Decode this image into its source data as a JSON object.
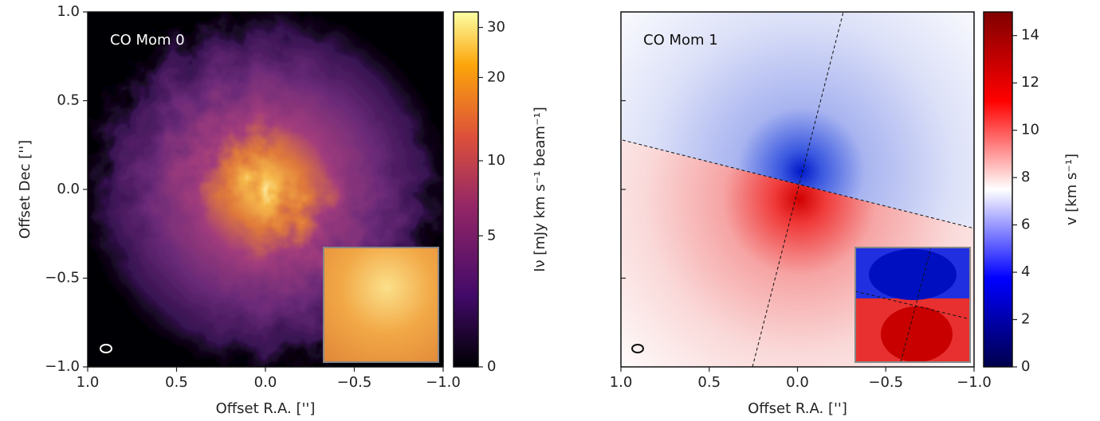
{
  "chart_data": [
    {
      "type": "image",
      "title": "CO Mom 0",
      "xlabel": "Offset R.A. ['']",
      "ylabel": "Offset Dec ['']",
      "xlim": [
        1.0,
        -1.0
      ],
      "ylim": [
        -1.0,
        1.0
      ],
      "xticks": [
        {
          "value": 1.0,
          "label": "1.0"
        },
        0.5,
        {
          "value": 0.0,
          "label": "0.0"
        },
        {
          "value": -0.5,
          "label": "−0.5"
        },
        {
          "value": -1.0,
          "label": "−1.0"
        }
      ],
      "yticks": [
        {
          "value": 1.0,
          "label": "1.0"
        },
        0.5,
        {
          "value": 0.0,
          "label": "0.0"
        },
        {
          "value": -0.5,
          "label": "−0.5"
        },
        {
          "value": -1.0,
          "label": "−1.0"
        }
      ],
      "colorbar": {
        "label": "Iν [mJy km s⁻¹ beam⁻¹]",
        "scale": "asinh",
        "lim": [
          0,
          34
        ],
        "ticks": [
          0,
          5,
          10,
          20,
          30
        ]
      }
    },
    {
      "type": "image",
      "title": "CO Mom 1",
      "xlabel": "Offset R.A. ['']",
      "xlim": [
        1.0,
        -1.0
      ],
      "ylim": [
        -1.0,
        1.0
      ],
      "xticks": [
        {
          "value": 1.0,
          "label": "1.0"
        },
        0.5,
        {
          "value": 0.0,
          "label": "0.0"
        },
        {
          "value": -0.5,
          "label": "−0.5"
        },
        {
          "value": -1.0,
          "label": "−1.0"
        }
      ],
      "yticks": [
        1.0,
        0.5,
        0.0,
        -0.5,
        -1.0
      ],
      "ytick_labels": false,
      "colorbar": {
        "label": "v [km s⁻¹]",
        "scale": "linear",
        "lim": [
          0,
          15
        ],
        "ticks": [
          0,
          2,
          4,
          6,
          8,
          10,
          12,
          14
        ]
      }
    }
  ]
}
